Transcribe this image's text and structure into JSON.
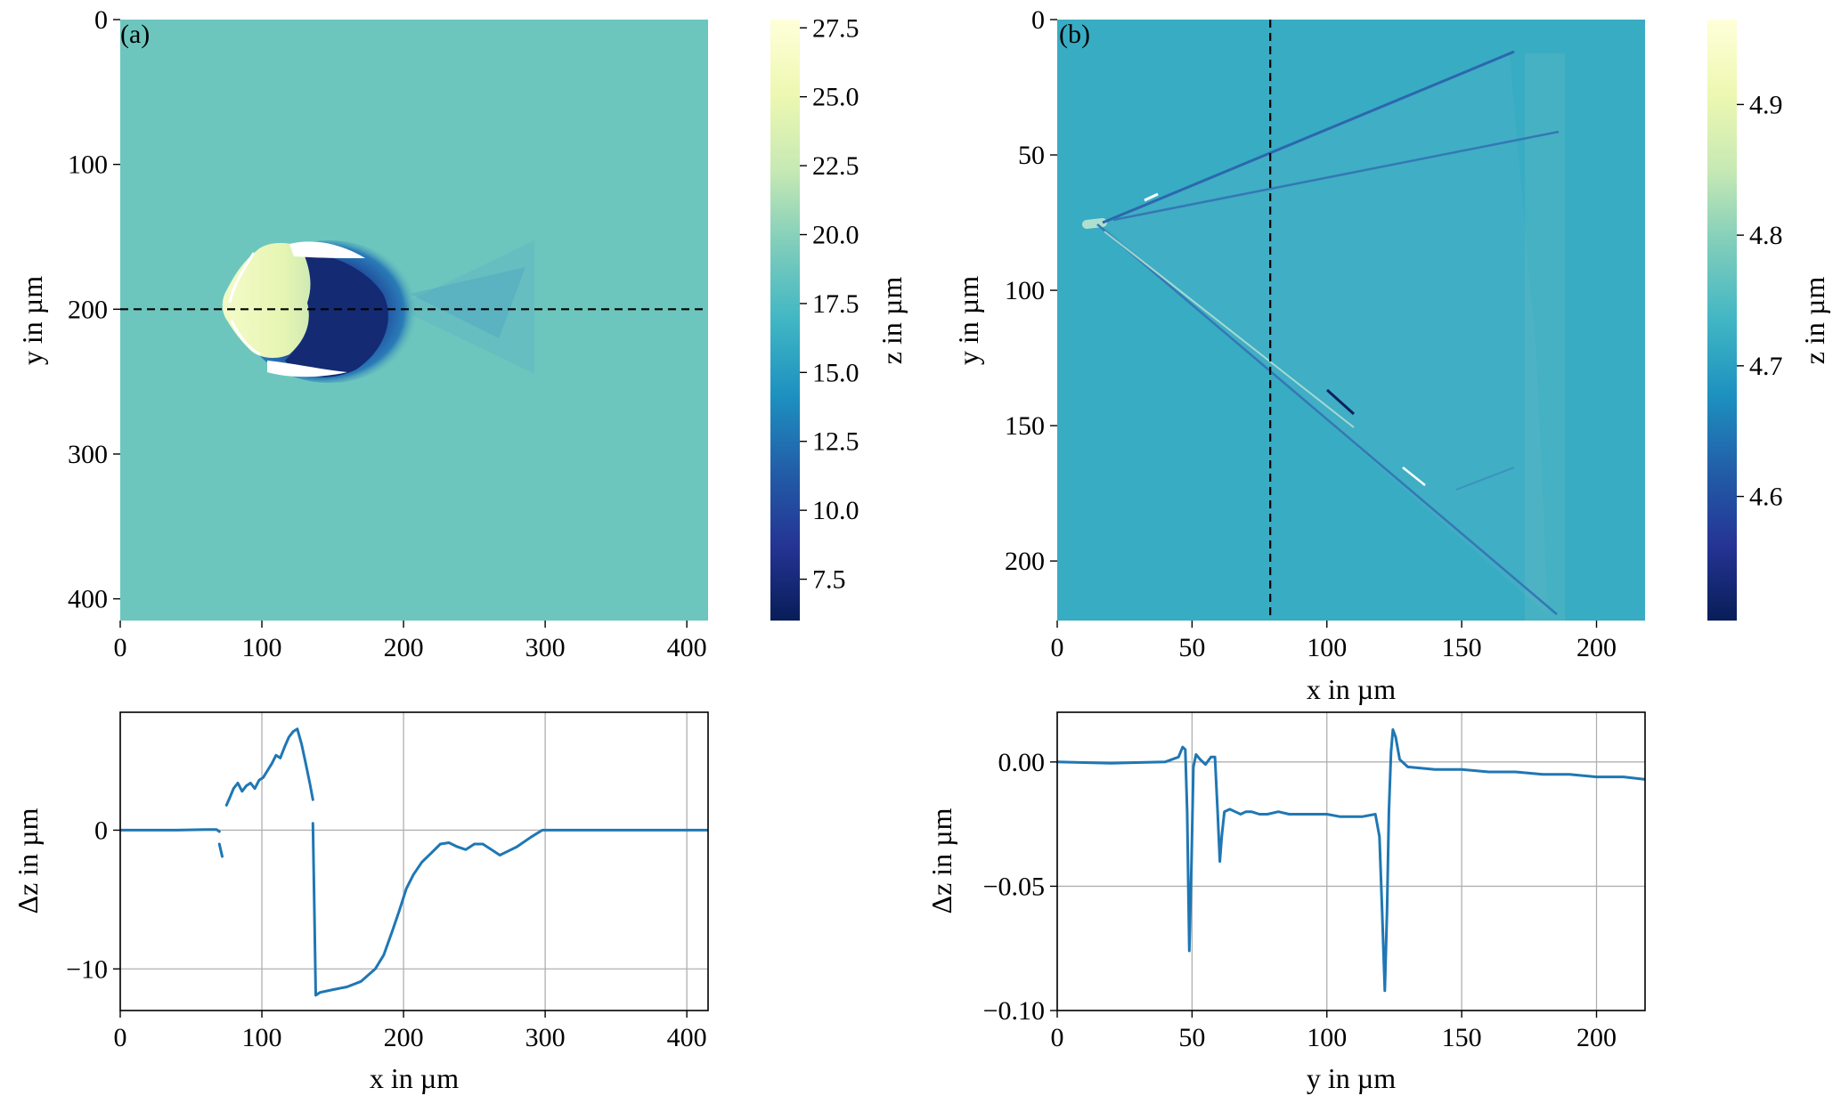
{
  "chart_data": [
    {
      "id": "a_map",
      "type": "heatmap",
      "panel_label": "(a)",
      "xlabel": "",
      "ylabel": "y in µm",
      "xlim": [
        0,
        415
      ],
      "ylim": [
        415,
        0
      ],
      "xticks": [
        0,
        100,
        200,
        300,
        400
      ],
      "yticks": [
        0,
        100,
        200,
        300,
        400
      ],
      "colorbar": {
        "label": "z in µm",
        "range": [
          6.0,
          27.8
        ],
        "ticks": [
          "7.5",
          "10.0",
          "12.5",
          "15.0",
          "17.5",
          "20.0",
          "22.5",
          "25.0",
          "27.5"
        ],
        "tick_values": [
          7.5,
          10.0,
          12.5,
          15.0,
          17.5,
          20.0,
          22.5,
          25.0,
          27.5
        ]
      },
      "background_level": 18.8,
      "profile_line": {
        "orientation": "horizontal",
        "at": 200
      }
    },
    {
      "id": "b_map",
      "type": "heatmap",
      "panel_label": "(b)",
      "xlabel": "x in µm",
      "ylabel": "y in µm",
      "xlim": [
        0,
        218
      ],
      "ylim": [
        222,
        0
      ],
      "xticks": [
        0,
        50,
        100,
        150,
        200
      ],
      "yticks": [
        0,
        50,
        100,
        150,
        200
      ],
      "colorbar": {
        "label": "z in µm",
        "range": [
          4.505,
          4.965
        ],
        "ticks": [
          "4.6",
          "4.7",
          "4.8",
          "4.9"
        ],
        "tick_values": [
          4.6,
          4.7,
          4.8,
          4.9
        ]
      },
      "background_level": 4.72,
      "profile_line": {
        "orientation": "vertical",
        "at": 79
      }
    },
    {
      "id": "a_profile",
      "type": "line",
      "xlabel": "x in µm",
      "ylabel": "Δz in µm",
      "xlim": [
        0,
        415
      ],
      "ylim": [
        -13,
        8.5
      ],
      "xticks": [
        0,
        100,
        200,
        300,
        400
      ],
      "yticks": [
        -10,
        0
      ],
      "ytick_labels": [
        "−10",
        "0"
      ],
      "grid": true,
      "series": [
        {
          "name": "profile",
          "color": "#1f77b4",
          "segments": [
            [
              [
                0,
                0
              ],
              [
                20,
                0
              ],
              [
                40,
                0
              ],
              [
                60,
                0.05
              ],
              [
                68,
                0.05
              ],
              [
                70,
                -0.1
              ]
            ],
            [
              [
                70,
                -1.0
              ],
              [
                72,
                -1.9
              ]
            ],
            [
              [
                75,
                1.8
              ],
              [
                78,
                2.5
              ],
              [
                80,
                3.0
              ],
              [
                83,
                3.4
              ],
              [
                86,
                2.8
              ],
              [
                89,
                3.2
              ],
              [
                92,
                3.4
              ],
              [
                95,
                3.0
              ],
              [
                98,
                3.6
              ],
              [
                101,
                3.8
              ],
              [
                104,
                4.3
              ],
              [
                107,
                4.8
              ],
              [
                110,
                5.4
              ],
              [
                113,
                5.2
              ],
              [
                116,
                6.0
              ],
              [
                119,
                6.7
              ],
              [
                122,
                7.1
              ],
              [
                125,
                7.3
              ],
              [
                128,
                6.2
              ],
              [
                131,
                4.8
              ],
              [
                134,
                3.3
              ],
              [
                136,
                2.2
              ]
            ],
            [
              [
                136,
                0.5
              ],
              [
                137,
                -5.5
              ],
              [
                138,
                -11.9
              ],
              [
                141,
                -11.7
              ],
              [
                150,
                -11.5
              ],
              [
                160,
                -11.3
              ],
              [
                170,
                -10.9
              ],
              [
                180,
                -10.0
              ],
              [
                186,
                -9.0
              ],
              [
                192,
                -7.3
              ],
              [
                197,
                -5.8
              ],
              [
                202,
                -4.2
              ],
              [
                207,
                -3.2
              ],
              [
                213,
                -2.3
              ],
              [
                220,
                -1.6
              ],
              [
                226,
                -1.0
              ],
              [
                232,
                -0.9
              ],
              [
                238,
                -1.2
              ],
              [
                244,
                -1.4
              ],
              [
                250,
                -1.0
              ],
              [
                256,
                -1.0
              ],
              [
                262,
                -1.4
              ],
              [
                268,
                -1.8
              ],
              [
                274,
                -1.5
              ],
              [
                280,
                -1.2
              ],
              [
                290,
                -0.5
              ],
              [
                298,
                0
              ],
              [
                310,
                0
              ],
              [
                350,
                0
              ],
              [
                415,
                0
              ]
            ]
          ]
        }
      ]
    },
    {
      "id": "b_profile",
      "type": "line",
      "xlabel": "y in µm",
      "ylabel": "Δz in µm",
      "xlim": [
        0,
        218
      ],
      "ylim": [
        -0.1,
        0.02
      ],
      "xticks": [
        0,
        50,
        100,
        150,
        200
      ],
      "yticks": [
        0.0,
        -0.05,
        -0.1
      ],
      "ytick_labels": [
        "0.00",
        "−0.05",
        "−0.10"
      ],
      "grid": true,
      "series": [
        {
          "name": "profile",
          "color": "#1f77b4",
          "segments": [
            [
              [
                0,
                0.0
              ],
              [
                20,
                -0.0005
              ],
              [
                40,
                0.0
              ],
              [
                45,
                0.002
              ],
              [
                46.5,
                0.006
              ],
              [
                47.5,
                0.005
              ],
              [
                48.2,
                -0.02
              ],
              [
                49,
                -0.076
              ],
              [
                49.8,
                -0.04
              ],
              [
                50.5,
                -0.002
              ],
              [
                51.5,
                0.003
              ],
              [
                53,
                0.001
              ],
              [
                55,
                -0.001
              ],
              [
                57,
                0.002
              ],
              [
                58.5,
                0.002
              ],
              [
                59.5,
                -0.02
              ],
              [
                60.3,
                -0.04
              ],
              [
                61,
                -0.03
              ],
              [
                62,
                -0.02
              ],
              [
                64,
                -0.019
              ],
              [
                66,
                -0.02
              ],
              [
                68,
                -0.021
              ],
              [
                70,
                -0.02
              ],
              [
                72,
                -0.02
              ],
              [
                75,
                -0.021
              ],
              [
                78,
                -0.021
              ],
              [
                82,
                -0.02
              ],
              [
                86,
                -0.021
              ],
              [
                90,
                -0.021
              ],
              [
                95,
                -0.021
              ],
              [
                100,
                -0.021
              ],
              [
                105,
                -0.022
              ],
              [
                110,
                -0.022
              ],
              [
                113,
                -0.022
              ],
              [
                118,
                -0.021
              ],
              [
                119.5,
                -0.03
              ],
              [
                120.5,
                -0.06
              ],
              [
                121.5,
                -0.092
              ],
              [
                122.3,
                -0.06
              ],
              [
                123,
                -0.02
              ],
              [
                123.8,
                0.004
              ],
              [
                124.5,
                0.013
              ],
              [
                125.5,
                0.01
              ],
              [
                127,
                0.001
              ],
              [
                130,
                -0.002
              ],
              [
                140,
                -0.003
              ],
              [
                150,
                -0.003
              ],
              [
                160,
                -0.004
              ],
              [
                170,
                -0.004
              ],
              [
                180,
                -0.005
              ],
              [
                190,
                -0.005
              ],
              [
                200,
                -0.006
              ],
              [
                210,
                -0.006
              ],
              [
                218,
                -0.007
              ]
            ]
          ]
        }
      ]
    }
  ]
}
